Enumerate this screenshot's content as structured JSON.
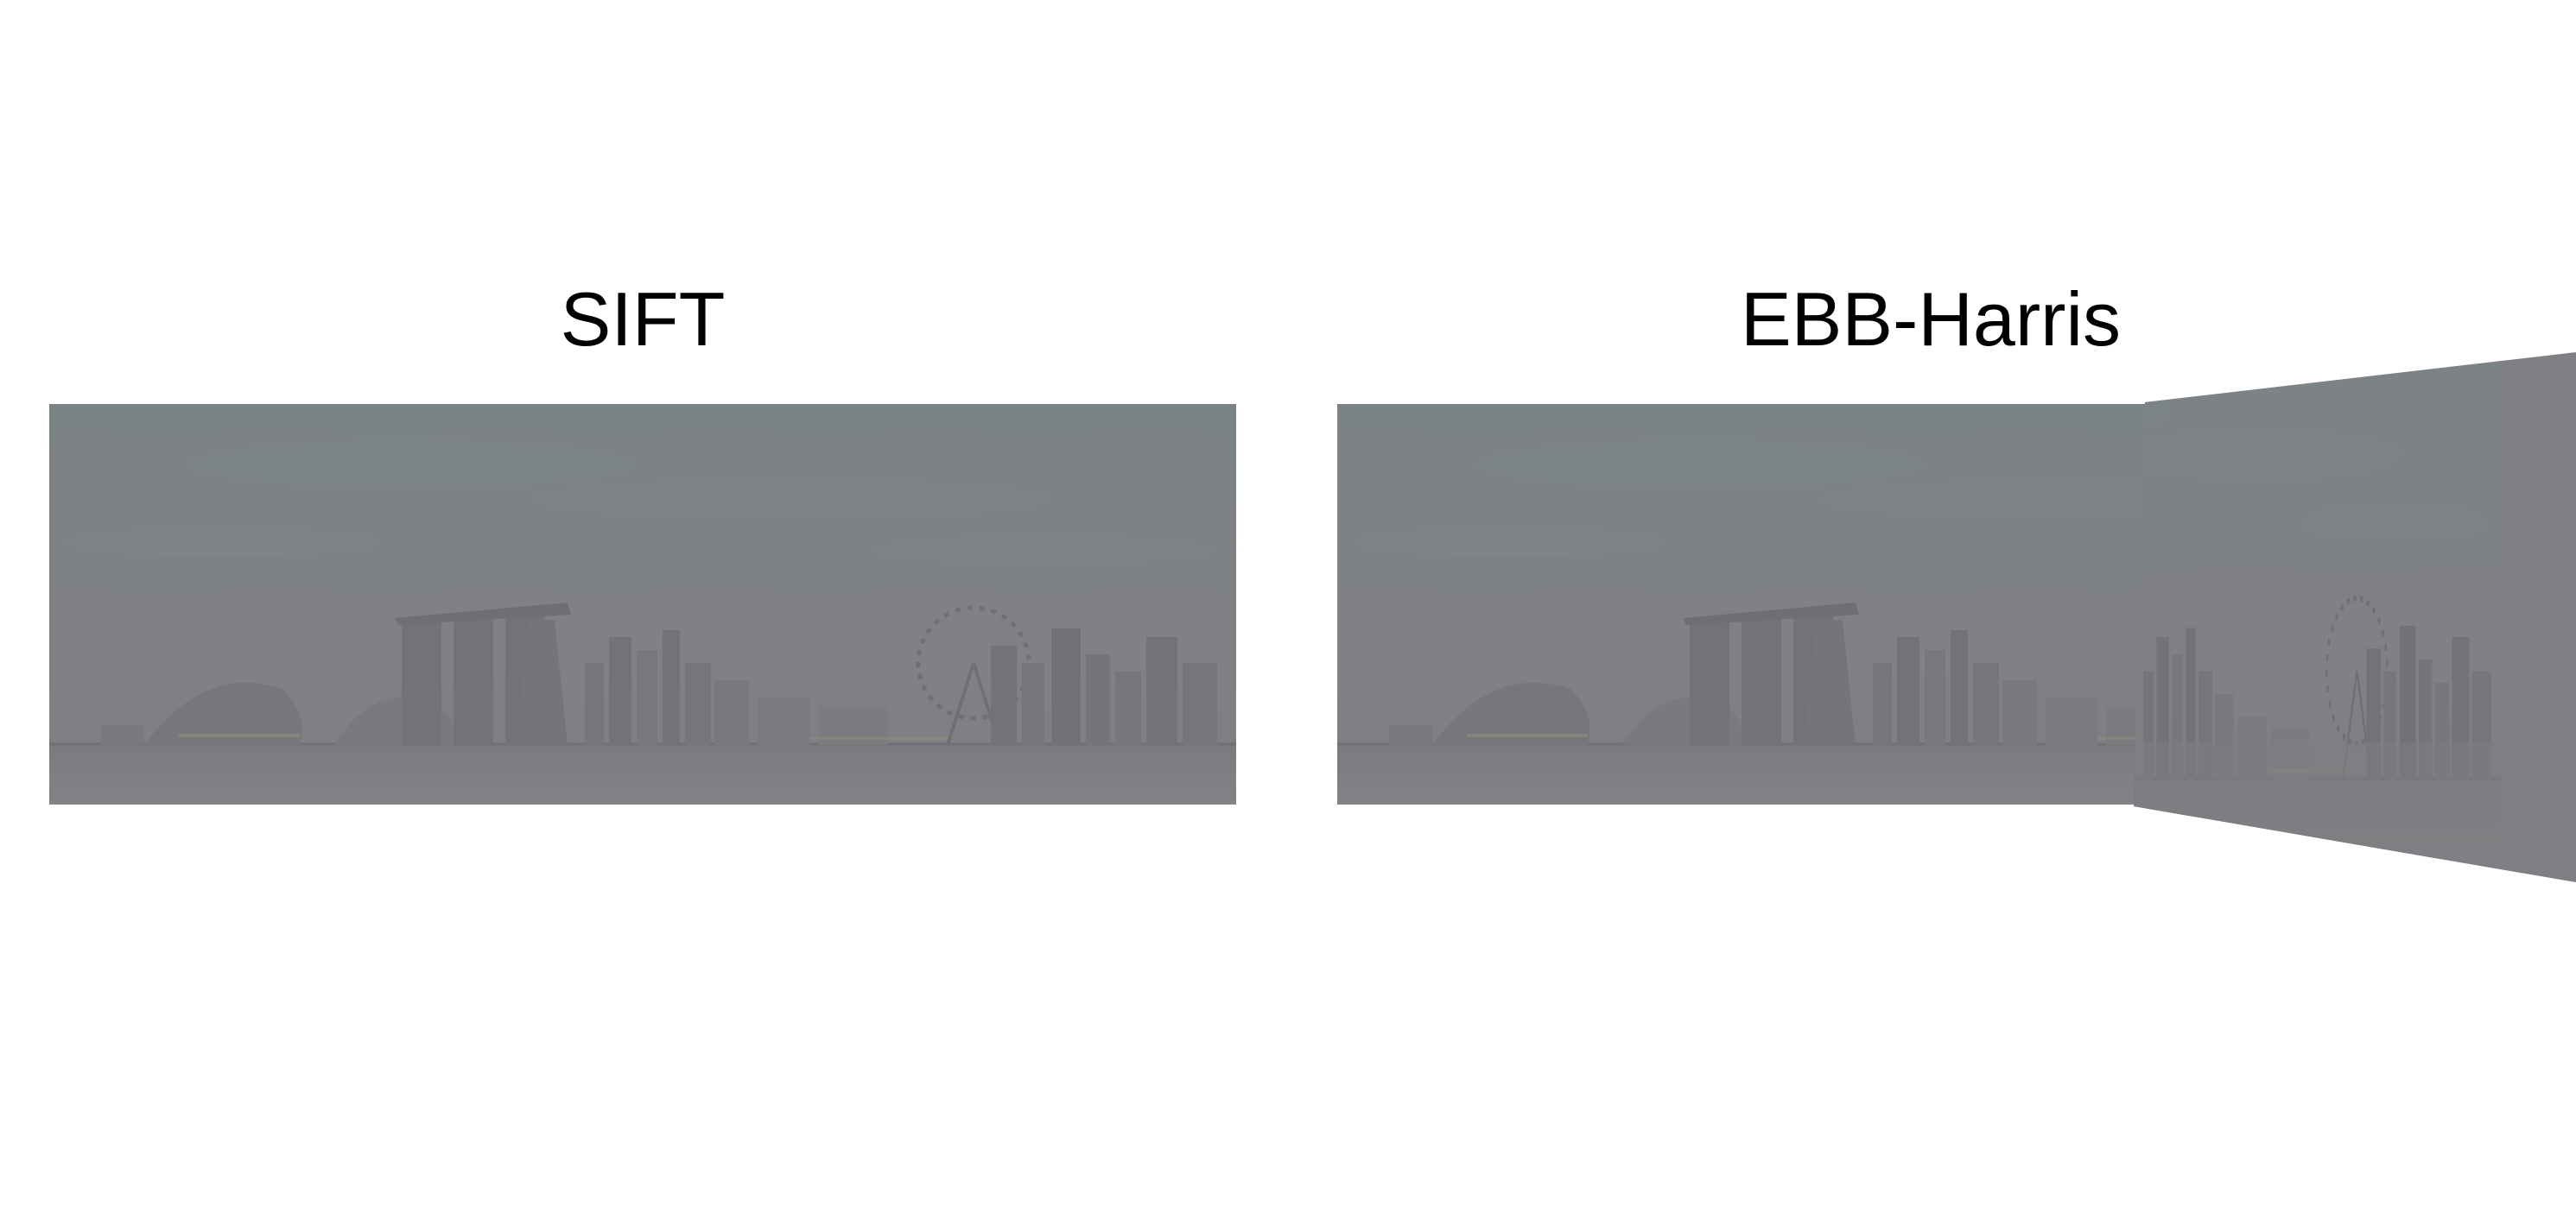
{
  "figure": {
    "panels": [
      {
        "title": "SIFT",
        "kind": "stitched-panorama"
      },
      {
        "title": "EBB-Harris",
        "kind": "stitched-panorama"
      }
    ]
  },
  "palette": {
    "background": "#ffffff",
    "title": "#000000",
    "panorama_base": "#7f8083",
    "sky_tint": "#7b8486",
    "city_silhouette": "#74757a",
    "water": "#808184",
    "highlight": "#8d8f7a"
  }
}
